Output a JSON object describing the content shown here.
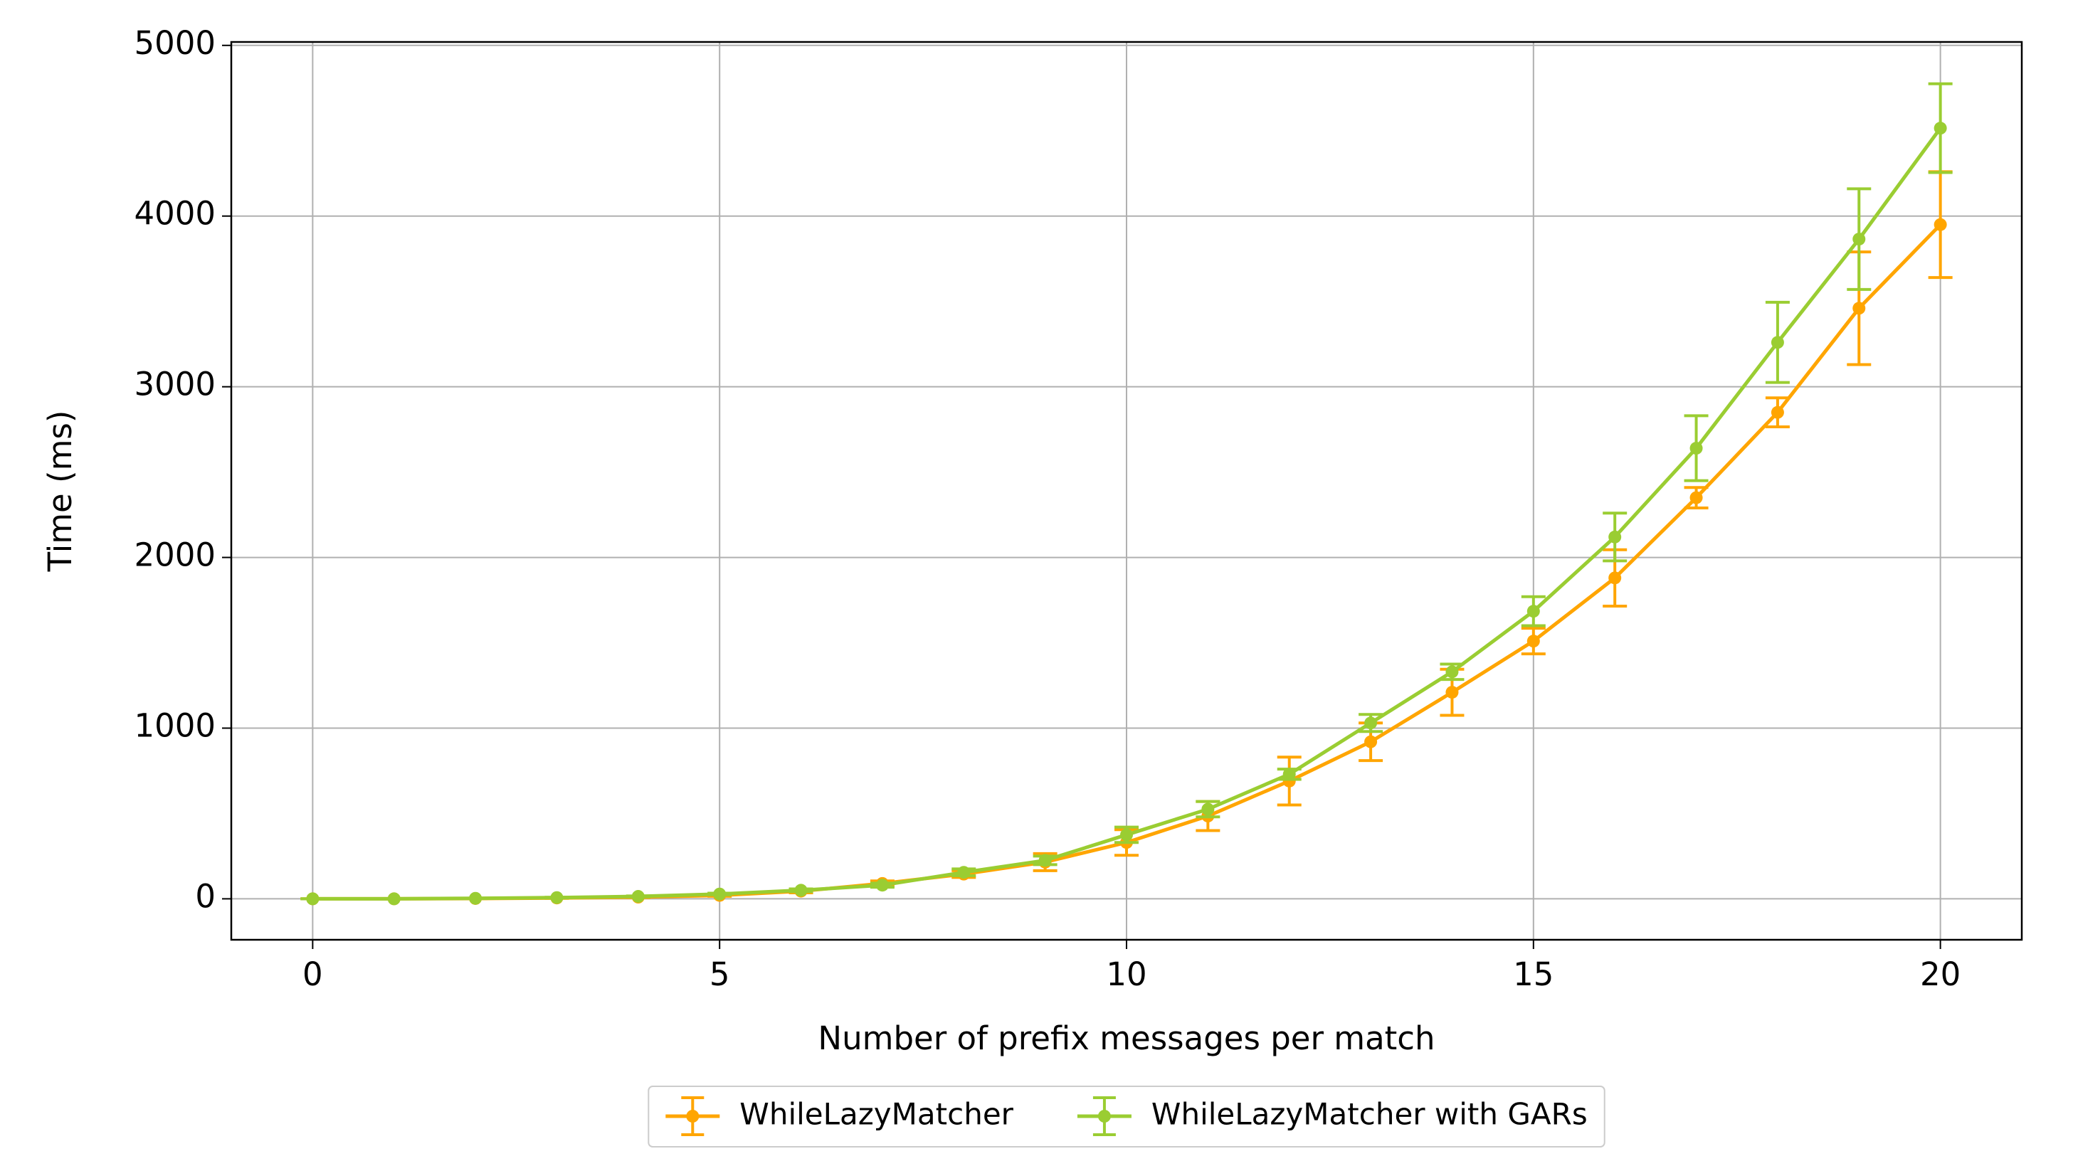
{
  "chart_data": {
    "type": "line",
    "xlabel": "Number of prefix messages per match",
    "ylabel": "Time (ms)",
    "x": [
      0,
      1,
      2,
      3,
      4,
      5,
      6,
      7,
      8,
      9,
      10,
      11,
      12,
      13,
      14,
      15,
      16,
      17,
      18,
      19,
      20
    ],
    "series": [
      {
        "name": "WhileLazyMatcher",
        "color": "#ffa500",
        "values": [
          0,
          0,
          2,
          5,
          10,
          20,
          45,
          90,
          145,
          215,
          330,
          485,
          690,
          920,
          1210,
          1510,
          1880,
          2350,
          2850,
          3460,
          3950
        ],
        "errors": [
          0,
          0,
          1,
          2,
          3,
          5,
          10,
          15,
          20,
          50,
          75,
          85,
          140,
          110,
          135,
          75,
          165,
          60,
          85,
          330,
          310
        ]
      },
      {
        "name": "WhileLazyMatcher with GARs",
        "color": "#9acd32",
        "values": [
          0,
          0,
          3,
          7,
          14,
          28,
          50,
          80,
          155,
          225,
          375,
          525,
          730,
          1030,
          1330,
          1685,
          2120,
          2640,
          3260,
          3865,
          4515
        ],
        "errors": [
          0,
          0,
          1,
          2,
          3,
          5,
          8,
          12,
          20,
          25,
          45,
          45,
          30,
          50,
          45,
          85,
          140,
          190,
          235,
          295,
          260
        ]
      }
    ],
    "xlim": [
      -1,
      21
    ],
    "ylim": [
      -240,
      5020
    ],
    "xticks": [
      0,
      5,
      10,
      15,
      20
    ],
    "yticks": [
      0,
      1000,
      2000,
      3000,
      4000,
      5000
    ],
    "grid": true,
    "legend": "bottom"
  }
}
